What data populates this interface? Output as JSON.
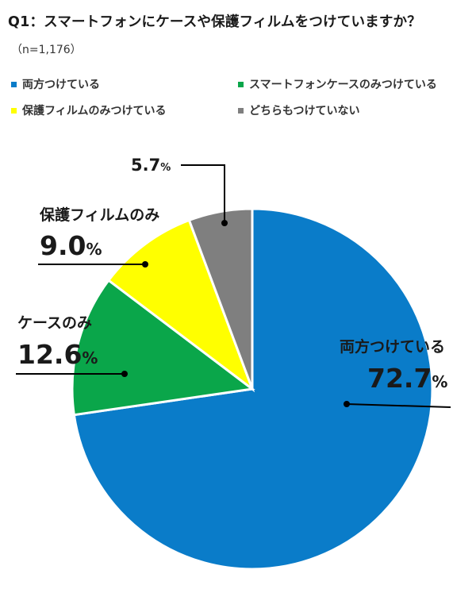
{
  "title": "Q1：スマートフォンにケースや保護フィルムをつけていますか？",
  "sample_size": "（n=1,176）",
  "chart_data": {
    "type": "pie",
    "slices": [
      {
        "label": "両方つけている",
        "legend": "両方つけている",
        "value": 72.7,
        "value_text": "72.7",
        "color": "#0a7cc9"
      },
      {
        "label": "ケースのみ",
        "legend": "スマートフォンケースのみつけている",
        "value": 12.6,
        "value_text": "12.6",
        "color": "#0aa64a"
      },
      {
        "label": "保護フィルムのみ",
        "legend": "保護フィルムのみつけている",
        "value": 9.0,
        "value_text": "9.0",
        "color": "#ffff00"
      },
      {
        "label": "",
        "legend": "どちらもつけていない",
        "value": 5.7,
        "value_text": "5.7",
        "color": "#7f7f7f"
      }
    ],
    "unit": "%",
    "direction": "clockwise from top"
  }
}
